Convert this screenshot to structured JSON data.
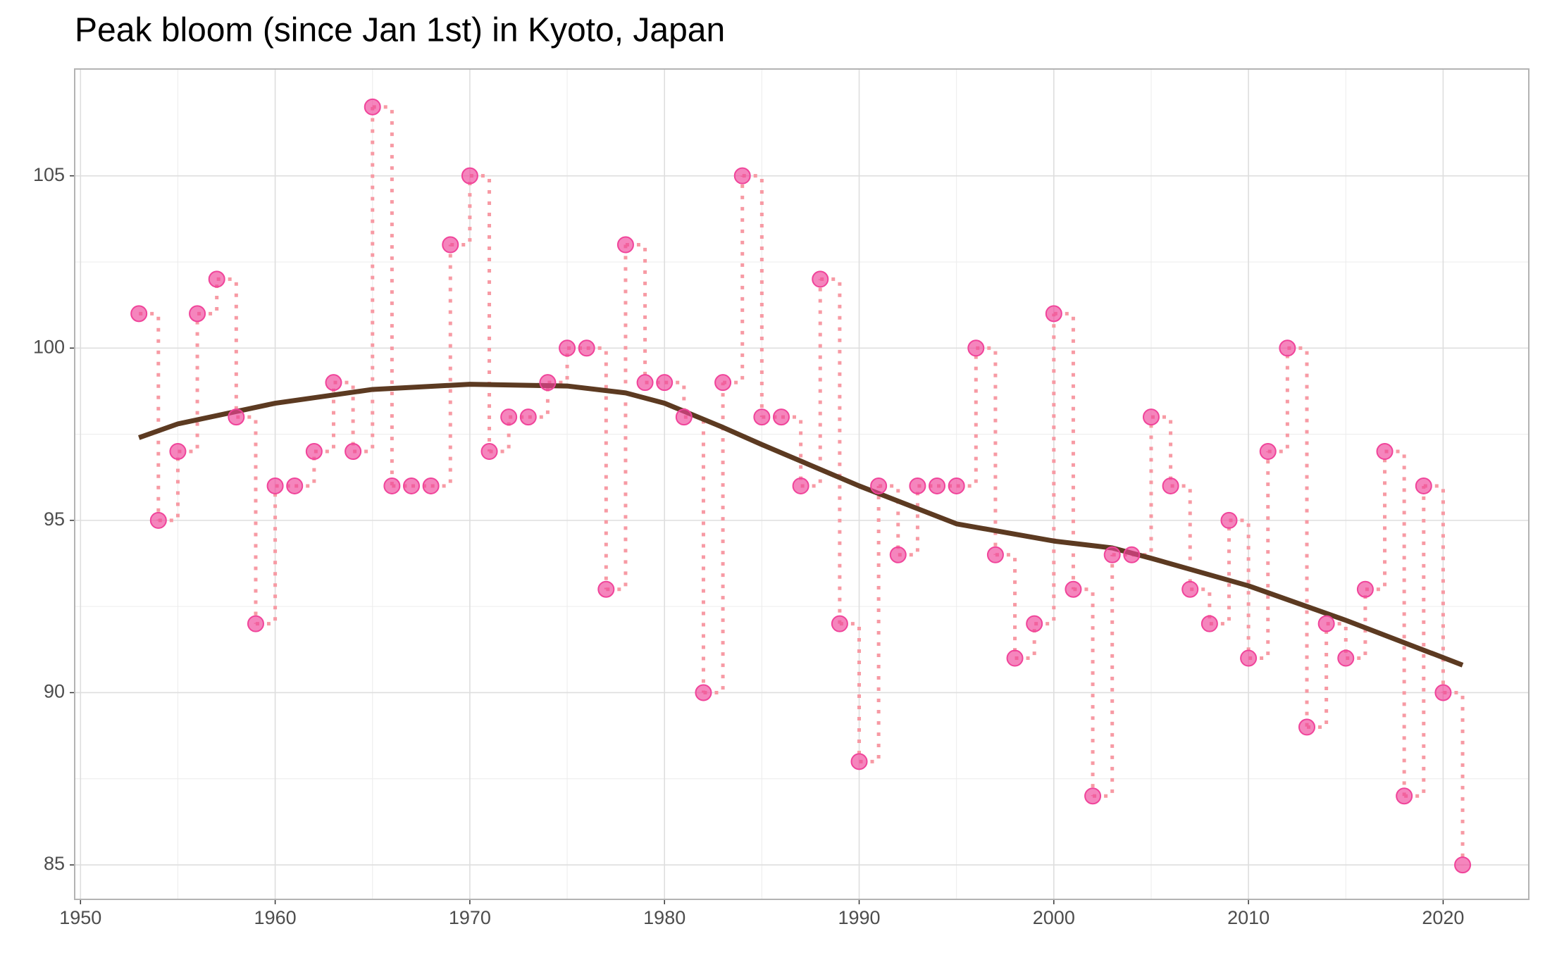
{
  "chart_data": {
    "type": "scatter",
    "title": "Peak bloom (since Jan 1st) in Kyoto, Japan",
    "x": [
      1953,
      1954,
      1955,
      1956,
      1957,
      1958,
      1959,
      1960,
      1961,
      1962,
      1963,
      1964,
      1965,
      1966,
      1967,
      1968,
      1969,
      1970,
      1971,
      1972,
      1973,
      1974,
      1975,
      1976,
      1977,
      1978,
      1979,
      1980,
      1981,
      1982,
      1983,
      1984,
      1985,
      1986,
      1987,
      1988,
      1989,
      1990,
      1991,
      1992,
      1993,
      1994,
      1995,
      1996,
      1997,
      1998,
      1999,
      2000,
      2001,
      2002,
      2003,
      2004,
      2005,
      2006,
      2007,
      2008,
      2009,
      2010,
      2011,
      2012,
      2013,
      2014,
      2015,
      2016,
      2017,
      2018,
      2019,
      2020,
      2021
    ],
    "values": [
      101,
      95,
      97,
      101,
      102,
      98,
      92,
      96,
      96,
      97,
      99,
      97,
      107,
      96,
      96,
      96,
      103,
      105,
      97,
      98,
      98,
      99,
      100,
      100,
      93,
      103,
      99,
      99,
      98,
      90,
      99,
      105,
      98,
      98,
      96,
      102,
      92,
      88,
      96,
      94,
      96,
      96,
      96,
      100,
      94,
      91,
      92,
      101,
      93,
      87,
      94,
      94,
      98,
      96,
      93,
      92,
      95,
      91,
      97,
      100,
      89,
      92,
      91,
      93,
      97,
      87,
      96,
      90,
      85
    ],
    "color": "#f0449a",
    "step_color": "#f79aa4",
    "trend": {
      "x": [
        1953,
        1955,
        1960,
        1965,
        1970,
        1975,
        1978,
        1980,
        1983,
        1985,
        1990,
        1995,
        2000,
        2003,
        2005,
        2010,
        2015,
        2021
      ],
      "values": [
        97.4,
        97.8,
        98.4,
        98.8,
        98.95,
        98.9,
        98.7,
        98.4,
        97.7,
        97.2,
        96.0,
        94.9,
        94.4,
        94.2,
        93.9,
        93.1,
        92.1,
        90.8
      ],
      "color": "#5c3a21"
    },
    "xlim": [
      1949.7,
      2024.4
    ],
    "xticks": [
      1950,
      1960,
      1970,
      1980,
      1990,
      2000,
      2010,
      2020
    ],
    "ylim": [
      84.0,
      108.1
    ],
    "yticks": [
      85,
      90,
      95,
      100,
      105
    ],
    "grid": true,
    "minor_grid": true
  }
}
